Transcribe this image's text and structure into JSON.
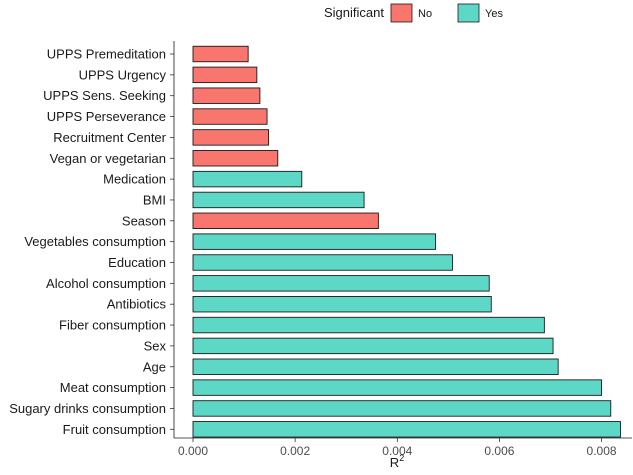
{
  "chart_data": {
    "type": "bar",
    "orientation": "horizontal",
    "xlabel": "R",
    "xlabel_superscript": "2",
    "xlim": [
      0,
      0.0084
    ],
    "xticks": [
      "0.000",
      "0.002",
      "0.004",
      "0.006",
      "0.008"
    ],
    "xtick_values": [
      0,
      0.002,
      0.004,
      0.006,
      0.008
    ],
    "legend": {
      "title": "Significant",
      "position": "top",
      "entries": [
        {
          "label": "No",
          "color": "#F8766D"
        },
        {
          "label": "Yes",
          "color": "#5ED8C6"
        }
      ]
    },
    "categories": [
      "UPPS Premeditation",
      "UPPS Urgency",
      "UPPS Sens. Seeking",
      "UPPS Perseverance",
      "Recruitment Center",
      "Vegan or vegetarian",
      "Medication",
      "BMI",
      "Season",
      "Vegetables consumption",
      "Education",
      "Alcohol consumption",
      "Antibiotics",
      "Fiber consumption",
      "Sex",
      "Age",
      "Meat consumption",
      "Sugary drinks consumption",
      "Fruit consumption"
    ],
    "values": [
      0.00108,
      0.00125,
      0.00131,
      0.00145,
      0.00148,
      0.00166,
      0.00213,
      0.00335,
      0.00363,
      0.00475,
      0.00508,
      0.0058,
      0.00584,
      0.00688,
      0.00705,
      0.00715,
      0.008,
      0.00818,
      0.00837
    ],
    "significant": [
      "No",
      "No",
      "No",
      "No",
      "No",
      "No",
      "Yes",
      "Yes",
      "No",
      "Yes",
      "Yes",
      "Yes",
      "Yes",
      "Yes",
      "Yes",
      "Yes",
      "Yes",
      "Yes",
      "Yes"
    ]
  }
}
